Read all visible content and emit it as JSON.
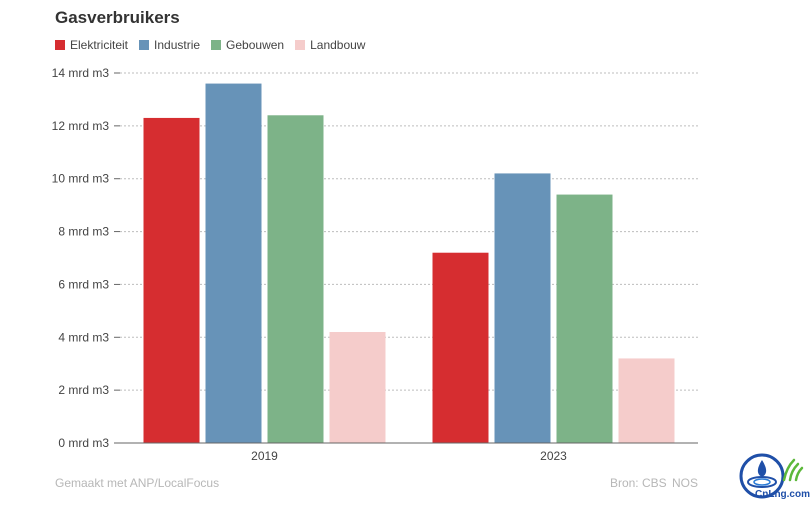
{
  "title": "Gasverbruikers",
  "footer": {
    "made_with": "Gemaakt met ANP/LocalFocus",
    "source_label": "Bron: CBS",
    "source_extra": "NOS"
  },
  "logo_text": "CnLng.com",
  "colors": {
    "Elektriciteit": "#d62d30",
    "Industrie": "#6793b8",
    "Gebouwen": "#7db388",
    "Landbouw": "#f5cccb"
  },
  "chart_data": {
    "type": "bar",
    "title": "Gasverbruikers",
    "xlabel": "",
    "ylabel": "",
    "unit": "mrd m3",
    "categories": [
      "2019",
      "2023"
    ],
    "series": [
      {
        "name": "Elektriciteit",
        "values": [
          12.3,
          7.2
        ]
      },
      {
        "name": "Industrie",
        "values": [
          13.6,
          10.2
        ]
      },
      {
        "name": "Gebouwen",
        "values": [
          12.4,
          9.4
        ]
      },
      {
        "name": "Landbouw",
        "values": [
          4.2,
          3.2
        ]
      }
    ],
    "ylim": [
      0,
      14
    ],
    "yticks": [
      0,
      2,
      4,
      6,
      8,
      10,
      12,
      14
    ],
    "ytick_labels": [
      "0 mrd m3",
      "2 mrd m3",
      "4 mrd m3",
      "6 mrd m3",
      "8 mrd m3",
      "10 mrd m3",
      "12 mrd m3",
      "14 mrd m3"
    ],
    "grid": true,
    "legend_position": "top-left"
  }
}
